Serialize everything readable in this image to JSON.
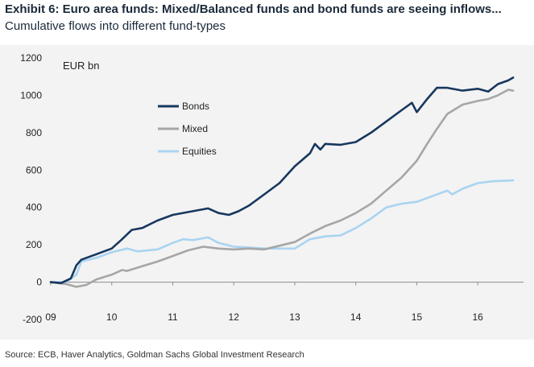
{
  "header": {
    "title": "Exhibit 6: Euro area funds: Mixed/Balanced funds and bond funds are seeing inflows...",
    "subtitle": "Cumulative flows into different fund-types"
  },
  "footer": {
    "source": "Source: ECB, Haver Analytics, Goldman Sachs Global Investment Research"
  },
  "chart_data": {
    "type": "line",
    "title": "Exhibit 6: Euro area funds: Mixed/Balanced funds and bond funds are seeing inflows...",
    "subtitle": "Cumulative flows into different fund-types",
    "unit_label": "EUR bn",
    "xlabel": "",
    "ylabel": "",
    "xlim": [
      2009.0,
      2016.75
    ],
    "ylim": [
      -200,
      1200
    ],
    "x_ticks": [
      {
        "value": 2009,
        "label": "09"
      },
      {
        "value": 2010,
        "label": "10"
      },
      {
        "value": 2011,
        "label": "11"
      },
      {
        "value": 2012,
        "label": "12"
      },
      {
        "value": 2013,
        "label": "13"
      },
      {
        "value": 2014,
        "label": "14"
      },
      {
        "value": 2015,
        "label": "15"
      },
      {
        "value": 2016,
        "label": "16"
      }
    ],
    "y_ticks": [
      -200,
      0,
      200,
      400,
      600,
      800,
      1000,
      1200
    ],
    "grid": false,
    "legend": {
      "placement": "upper-left"
    },
    "series": [
      {
        "name": "Bonds",
        "color": "#17375e",
        "points": [
          [
            2009.0,
            0
          ],
          [
            2009.17,
            -5
          ],
          [
            2009.33,
            20
          ],
          [
            2009.42,
            90
          ],
          [
            2009.5,
            120
          ],
          [
            2009.75,
            150
          ],
          [
            2010.0,
            180
          ],
          [
            2010.17,
            230
          ],
          [
            2010.33,
            280
          ],
          [
            2010.5,
            290
          ],
          [
            2010.75,
            330
          ],
          [
            2011.0,
            360
          ],
          [
            2011.25,
            375
          ],
          [
            2011.5,
            390
          ],
          [
            2011.58,
            395
          ],
          [
            2011.75,
            370
          ],
          [
            2011.92,
            360
          ],
          [
            2012.08,
            380
          ],
          [
            2012.25,
            410
          ],
          [
            2012.5,
            470
          ],
          [
            2012.75,
            530
          ],
          [
            2013.0,
            620
          ],
          [
            2013.25,
            690
          ],
          [
            2013.33,
            740
          ],
          [
            2013.42,
            710
          ],
          [
            2013.5,
            740
          ],
          [
            2013.75,
            735
          ],
          [
            2014.0,
            750
          ],
          [
            2014.25,
            800
          ],
          [
            2014.5,
            860
          ],
          [
            2014.75,
            920
          ],
          [
            2014.92,
            960
          ],
          [
            2015.0,
            910
          ],
          [
            2015.17,
            980
          ],
          [
            2015.33,
            1040
          ],
          [
            2015.5,
            1040
          ],
          [
            2015.75,
            1025
          ],
          [
            2016.0,
            1035
          ],
          [
            2016.17,
            1020
          ],
          [
            2016.33,
            1060
          ],
          [
            2016.5,
            1080
          ],
          [
            2016.58,
            1095
          ]
        ]
      },
      {
        "name": "Mixed",
        "color": "#a6a6a6",
        "points": [
          [
            2009.0,
            0
          ],
          [
            2009.25,
            -10
          ],
          [
            2009.42,
            -25
          ],
          [
            2009.58,
            -15
          ],
          [
            2009.75,
            15
          ],
          [
            2010.0,
            40
          ],
          [
            2010.17,
            65
          ],
          [
            2010.25,
            60
          ],
          [
            2010.5,
            85
          ],
          [
            2010.75,
            110
          ],
          [
            2011.0,
            140
          ],
          [
            2011.25,
            170
          ],
          [
            2011.5,
            190
          ],
          [
            2011.75,
            180
          ],
          [
            2012.0,
            175
          ],
          [
            2012.25,
            180
          ],
          [
            2012.5,
            175
          ],
          [
            2012.75,
            195
          ],
          [
            2013.0,
            215
          ],
          [
            2013.25,
            260
          ],
          [
            2013.5,
            300
          ],
          [
            2013.75,
            330
          ],
          [
            2014.0,
            370
          ],
          [
            2014.25,
            420
          ],
          [
            2014.5,
            490
          ],
          [
            2014.75,
            560
          ],
          [
            2015.0,
            650
          ],
          [
            2015.17,
            740
          ],
          [
            2015.33,
            820
          ],
          [
            2015.5,
            900
          ],
          [
            2015.75,
            950
          ],
          [
            2016.0,
            970
          ],
          [
            2016.17,
            980
          ],
          [
            2016.33,
            1000
          ],
          [
            2016.5,
            1030
          ],
          [
            2016.58,
            1025
          ]
        ]
      },
      {
        "name": "Equities",
        "color": "#a9d4f0",
        "points": [
          [
            2009.0,
            0
          ],
          [
            2009.25,
            0
          ],
          [
            2009.42,
            40
          ],
          [
            2009.5,
            110
          ],
          [
            2009.75,
            130
          ],
          [
            2010.0,
            160
          ],
          [
            2010.25,
            180
          ],
          [
            2010.42,
            165
          ],
          [
            2010.75,
            175
          ],
          [
            2011.0,
            210
          ],
          [
            2011.17,
            230
          ],
          [
            2011.33,
            225
          ],
          [
            2011.58,
            240
          ],
          [
            2011.75,
            210
          ],
          [
            2012.0,
            190
          ],
          [
            2012.25,
            185
          ],
          [
            2012.5,
            180
          ],
          [
            2012.75,
            180
          ],
          [
            2013.0,
            180
          ],
          [
            2013.25,
            230
          ],
          [
            2013.5,
            245
          ],
          [
            2013.75,
            250
          ],
          [
            2014.0,
            290
          ],
          [
            2014.25,
            340
          ],
          [
            2014.5,
            400
          ],
          [
            2014.75,
            420
          ],
          [
            2015.0,
            430
          ],
          [
            2015.25,
            460
          ],
          [
            2015.5,
            490
          ],
          [
            2015.58,
            470
          ],
          [
            2015.75,
            500
          ],
          [
            2016.0,
            530
          ],
          [
            2016.25,
            540
          ],
          [
            2016.58,
            545
          ]
        ]
      }
    ]
  }
}
